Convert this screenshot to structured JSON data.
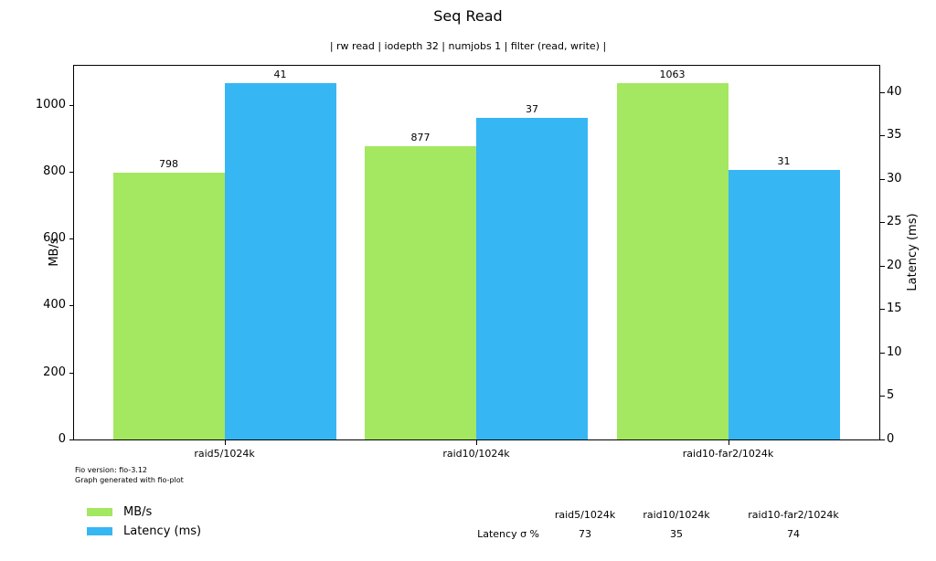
{
  "header": {
    "title": "Seq Read",
    "subtitle": "| rw read | iodepth 32 | numjobs 1 | filter (read, write) |"
  },
  "chart_data": {
    "type": "bar",
    "categories": [
      "raid5/1024k",
      "raid10/1024k",
      "raid10-far2/1024k"
    ],
    "series": [
      {
        "name": "MB/s",
        "axis": "left",
        "color": "#a4e760",
        "values": [
          798,
          877,
          1063
        ]
      },
      {
        "name": "Latency (ms)",
        "axis": "right",
        "color": "#37b6f4",
        "values": [
          41,
          37,
          31
        ]
      }
    ],
    "left_axis": {
      "label": "MB/s",
      "ticks": [
        0,
        200,
        400,
        600,
        800,
        1000
      ],
      "max": 1116.15
    },
    "right_axis": {
      "label": "Latency (ms)",
      "ticks": [
        0,
        5,
        10,
        15,
        20,
        25,
        30,
        35,
        40
      ],
      "max": 43.05
    },
    "bar_value_labels": true,
    "grid": false,
    "legend_position": "bottom-left"
  },
  "footer": {
    "line1": "Fio version: fio-3.12",
    "line2": "Graph generated with fio-plot"
  },
  "legend": {
    "items": [
      {
        "label": "MB/s",
        "color": "#a4e760"
      },
      {
        "label": "Latency (ms)",
        "color": "#37b6f4"
      }
    ]
  },
  "stats_table": {
    "columns": [
      "raid5/1024k",
      "raid10/1024k",
      "raid10-far2/1024k"
    ],
    "rows": [
      {
        "label": "Latency σ %",
        "values": [
          "73",
          "35",
          "74"
        ]
      }
    ]
  }
}
